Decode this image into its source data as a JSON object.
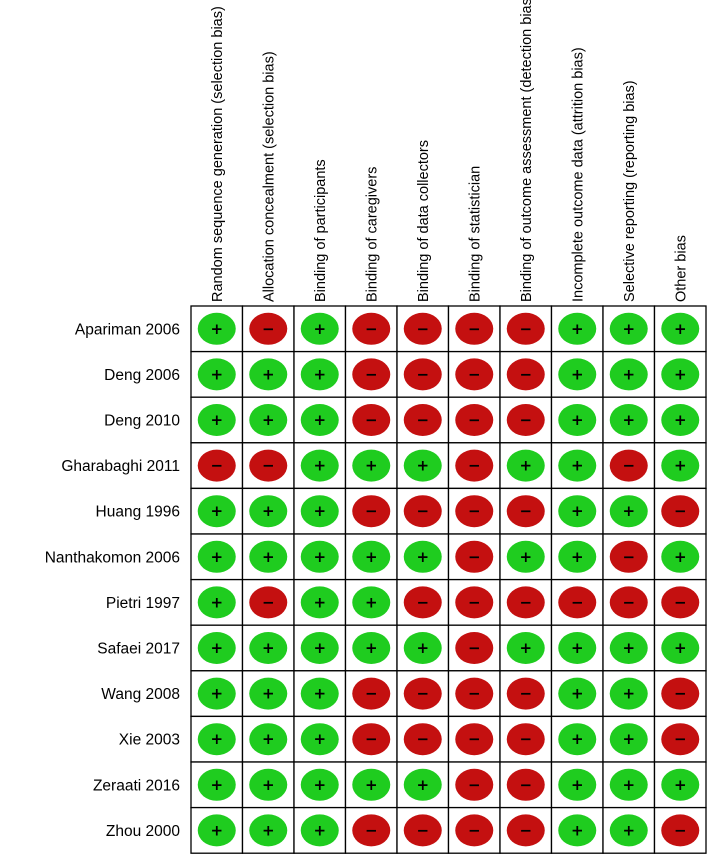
{
  "chart_data": {
    "type": "table",
    "columns": [
      "Random sequence generation (selection bias)",
      "Allocation concealment (selection bias)",
      "Binding of participants",
      "Binding of caregivers",
      "Binding of data collectors",
      "Binding of statistician",
      "Binding of outcome assessment (detection bias)",
      "Incomplete outcome data (attrition bias)",
      "Selective reporting (reporting bias)",
      "Other bias"
    ],
    "rows": [
      "Apariman 2006",
      "Deng 2006",
      "Deng 2010",
      "Gharabaghi 2011",
      "Huang 1996",
      "Nanthakomon 2006",
      "Pietri 1997",
      "Safaei 2017",
      "Wang 2008",
      "Xie 2003",
      "Zeraati 2016",
      "Zhou 2000"
    ],
    "values": [
      [
        "+",
        "-",
        "+",
        "-",
        "-",
        "-",
        "-",
        "+",
        "+",
        "+"
      ],
      [
        "+",
        "+",
        "+",
        "-",
        "-",
        "-",
        "-",
        "+",
        "+",
        "+"
      ],
      [
        "+",
        "+",
        "+",
        "-",
        "-",
        "-",
        "-",
        "+",
        "+",
        "+"
      ],
      [
        "-",
        "-",
        "+",
        "+",
        "+",
        "-",
        "+",
        "+",
        "-",
        "+"
      ],
      [
        "+",
        "+",
        "+",
        "-",
        "-",
        "-",
        "-",
        "+",
        "+",
        "-"
      ],
      [
        "+",
        "+",
        "+",
        "+",
        "+",
        "-",
        "+",
        "+",
        "-",
        "+"
      ],
      [
        "+",
        "-",
        "+",
        "+",
        "-",
        "-",
        "-",
        "-",
        "-",
        "-"
      ],
      [
        "+",
        "+",
        "+",
        "+",
        "+",
        "-",
        "+",
        "+",
        "+",
        "+"
      ],
      [
        "+",
        "+",
        "+",
        "-",
        "-",
        "-",
        "-",
        "+",
        "+",
        "-"
      ],
      [
        "+",
        "+",
        "+",
        "-",
        "-",
        "-",
        "-",
        "+",
        "+",
        "-"
      ],
      [
        "+",
        "+",
        "+",
        "+",
        "+",
        "-",
        "-",
        "+",
        "+",
        "+"
      ],
      [
        "+",
        "+",
        "+",
        "-",
        "-",
        "-",
        "-",
        "+",
        "+",
        "-"
      ]
    ],
    "symbols": {
      "+": "+",
      "-": "−"
    },
    "colors": {
      "+": "#1fcc1f",
      "-": "#c41010",
      "grid": "#000000",
      "symbol": "#000000"
    }
  }
}
